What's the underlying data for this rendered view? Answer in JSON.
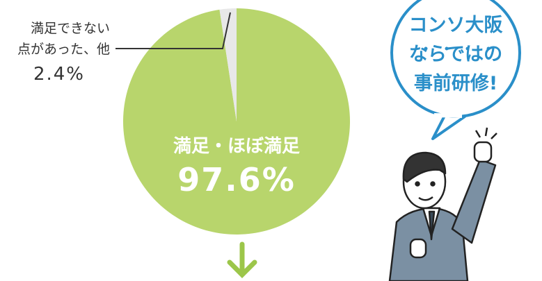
{
  "chart_data": {
    "type": "pie",
    "categories": [
      "満足・ほぼ満足",
      "満足できない\n点があった、他"
    ],
    "values": [
      97.6,
      2.4
    ],
    "value_labels": [
      "97.6%",
      "2.4%"
    ],
    "colors": [
      "#b8d56c",
      "#e8e8e8"
    ],
    "annotation": "コンソ大阪\nならではの\n事前研修!"
  }
}
